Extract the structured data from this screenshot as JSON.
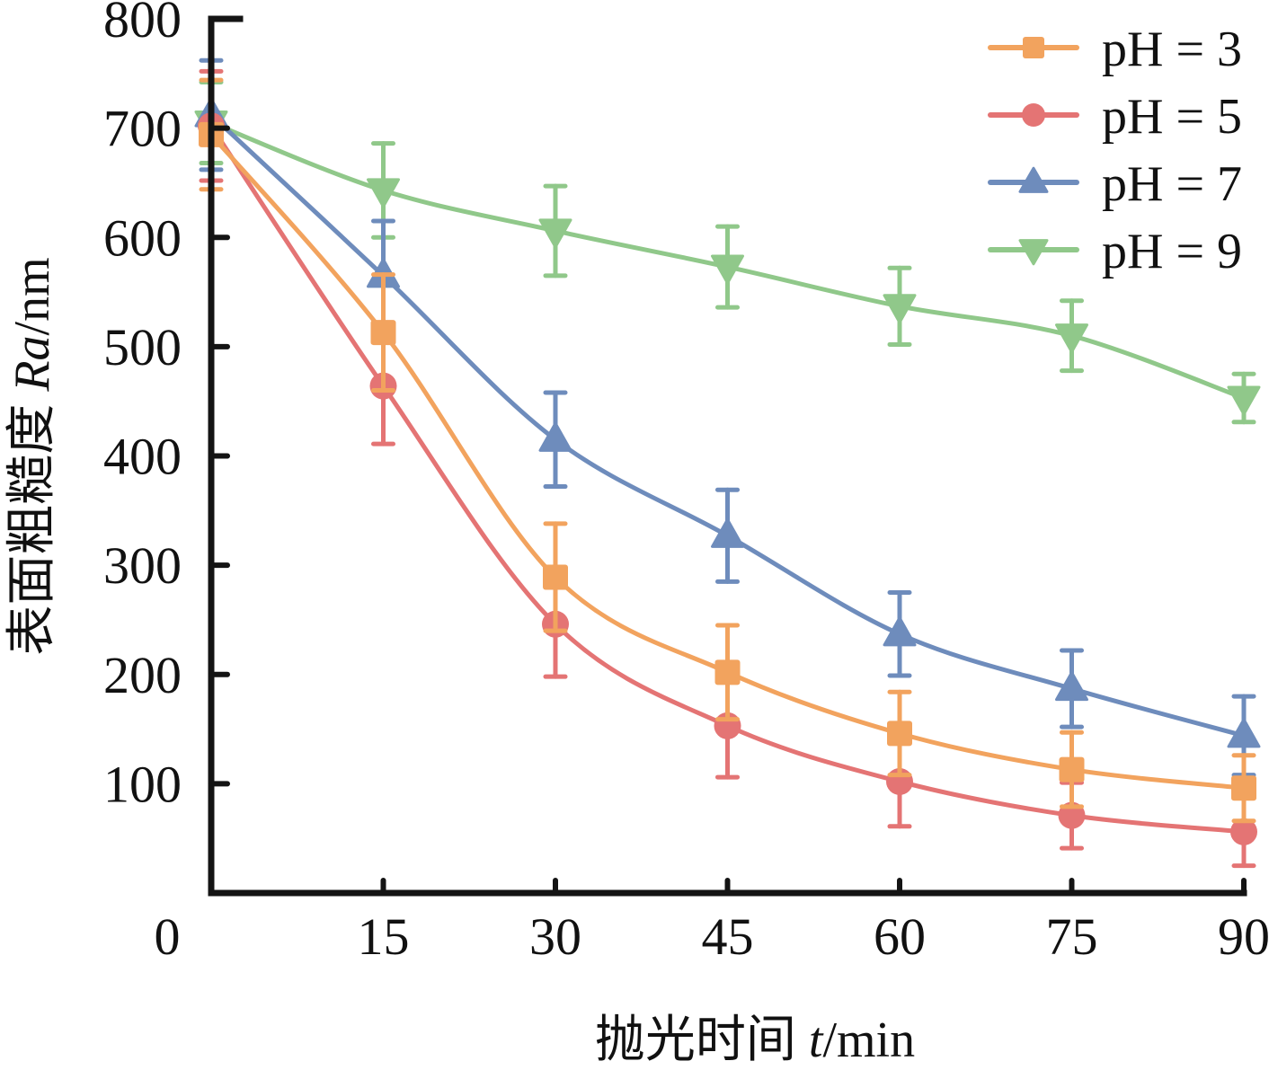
{
  "chart_data": {
    "type": "line",
    "title": "",
    "xlabel": {
      "prefix": "抛光时间 ",
      "italic": "t",
      "suffix": "/min"
    },
    "ylabel": {
      "prefix": "表面粗糙度 ",
      "italic": "Ra",
      "suffix": "/nm"
    },
    "x": [
      0,
      15,
      30,
      45,
      60,
      75,
      90
    ],
    "x_ticks": [
      0,
      15,
      30,
      45,
      60,
      75,
      90
    ],
    "x_tick_labels": [
      "0",
      "15",
      "30",
      "45",
      "60",
      "75",
      "90"
    ],
    "y_ticks": [
      100,
      200,
      300,
      400,
      500,
      600,
      700,
      800
    ],
    "y_tick_labels": [
      "100",
      "200",
      "300",
      "400",
      "500",
      "600",
      "700",
      "800"
    ],
    "xlim": [
      0,
      90
    ],
    "ylim": [
      0,
      800
    ],
    "grid": false,
    "smooth": true,
    "legend_position": "top-right",
    "series": [
      {
        "name": "pH = 3",
        "color": "#F2A35E",
        "marker": "square",
        "values": [
          694,
          513,
          289,
          202,
          146,
          113,
          96
        ],
        "errors": [
          50,
          53,
          49,
          43,
          38,
          34,
          30
        ]
      },
      {
        "name": "pH = 5",
        "color": "#E47474",
        "marker": "circle",
        "values": [
          702,
          464,
          246,
          153,
          102,
          71,
          56
        ],
        "errors": [
          50,
          53,
          48,
          47,
          41,
          30,
          31
        ]
      },
      {
        "name": "pH = 7",
        "color": "#6E8CBC",
        "marker": "triangle-up",
        "values": [
          712,
          565,
          415,
          327,
          237,
          187,
          144
        ],
        "errors": [
          50,
          50,
          43,
          42,
          38,
          35,
          36
        ]
      },
      {
        "name": "pH = 9",
        "color": "#90C88A",
        "marker": "triangle-down",
        "values": [
          705,
          643,
          606,
          573,
          537,
          510,
          453
        ],
        "errors": [
          37,
          43,
          41,
          37,
          35,
          32,
          22
        ]
      }
    ]
  }
}
